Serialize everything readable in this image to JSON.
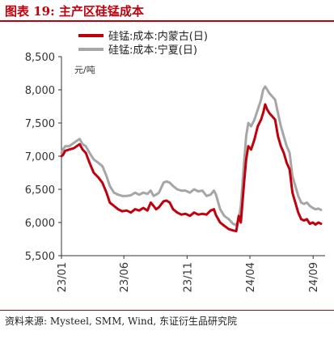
{
  "figure": {
    "title": "图表 19:  主产区硅锰成本",
    "source": "资料来源: Mysteel, SMM, Wind, 东证衍生品研究院",
    "colors": {
      "brand": "#c0000c"
    }
  },
  "chart_data": {
    "type": "line",
    "unit_label": "元/吨",
    "ylim": [
      5500,
      8500
    ],
    "yticks": [
      5500,
      6000,
      6500,
      7000,
      7500,
      8000,
      8500
    ],
    "ytick_labels": [
      "5,500",
      "6,000",
      "6,500",
      "7,000",
      "7,500",
      "8,000",
      "8,500"
    ],
    "xlim": [
      "2023-01-01",
      "2024-09-30"
    ],
    "xticks": [
      "2023-01-01",
      "2023-06-01",
      "2023-11-01",
      "2024-04-01",
      "2024-09-01"
    ],
    "xtick_labels": [
      "23/01",
      "23/06",
      "23/11",
      "24/04",
      "24/09"
    ],
    "legend_position": "top",
    "grid": false,
    "series": [
      {
        "name": "硅锰:成本:内蒙古(日)",
        "color": "#c0000c",
        "points": [
          [
            "2023-01-01",
            7000
          ],
          [
            "2023-01-05",
            7020
          ],
          [
            "2023-01-10",
            7080
          ],
          [
            "2023-01-20",
            7100
          ],
          [
            "2023-01-31",
            7120
          ],
          [
            "2023-02-07",
            7150
          ],
          [
            "2023-02-14",
            7180
          ],
          [
            "2023-02-21",
            7100
          ],
          [
            "2023-03-01",
            7050
          ],
          [
            "2023-03-10",
            6900
          ],
          [
            "2023-03-20",
            6750
          ],
          [
            "2023-03-31",
            6680
          ],
          [
            "2023-04-10",
            6600
          ],
          [
            "2023-04-20",
            6450
          ],
          [
            "2023-04-28",
            6300
          ],
          [
            "2023-05-08",
            6250
          ],
          [
            "2023-05-18",
            6200
          ],
          [
            "2023-05-28",
            6170
          ],
          [
            "2023-06-08",
            6180
          ],
          [
            "2023-06-18",
            6150
          ],
          [
            "2023-06-28",
            6200
          ],
          [
            "2023-07-08",
            6180
          ],
          [
            "2023-07-18",
            6220
          ],
          [
            "2023-07-28",
            6180
          ],
          [
            "2023-08-05",
            6300
          ],
          [
            "2023-08-12",
            6250
          ],
          [
            "2023-08-18",
            6200
          ],
          [
            "2023-08-25",
            6230
          ],
          [
            "2023-09-05",
            6320
          ],
          [
            "2023-09-12",
            6330
          ],
          [
            "2023-09-20",
            6300
          ],
          [
            "2023-09-28",
            6200
          ],
          [
            "2023-10-08",
            6150
          ],
          [
            "2023-10-18",
            6120
          ],
          [
            "2023-10-28",
            6130
          ],
          [
            "2023-11-08",
            6100
          ],
          [
            "2023-11-18",
            6150
          ],
          [
            "2023-11-28",
            6120
          ],
          [
            "2023-12-08",
            6130
          ],
          [
            "2023-12-18",
            6120
          ],
          [
            "2023-12-28",
            6180
          ],
          [
            "2024-01-05",
            6200
          ],
          [
            "2024-01-10",
            6110
          ],
          [
            "2024-01-20",
            6000
          ],
          [
            "2024-01-30",
            5950
          ],
          [
            "2024-02-10",
            5900
          ],
          [
            "2024-02-20",
            5880
          ],
          [
            "2024-02-28",
            5870
          ],
          [
            "2024-03-05",
            6100
          ],
          [
            "2024-03-10",
            6000
          ],
          [
            "2024-03-18",
            6600
          ],
          [
            "2024-03-23",
            6950
          ],
          [
            "2024-03-28",
            7150
          ],
          [
            "2024-04-04",
            7100
          ],
          [
            "2024-04-12",
            7250
          ],
          [
            "2024-04-20",
            7450
          ],
          [
            "2024-04-28",
            7550
          ],
          [
            "2024-05-03",
            7650
          ],
          [
            "2024-05-08",
            7780
          ],
          [
            "2024-05-13",
            7700
          ],
          [
            "2024-05-18",
            7650
          ],
          [
            "2024-05-25",
            7600
          ],
          [
            "2024-06-01",
            7550
          ],
          [
            "2024-06-08",
            7300
          ],
          [
            "2024-06-15",
            7150
          ],
          [
            "2024-06-22",
            7050
          ],
          [
            "2024-06-29",
            6900
          ],
          [
            "2024-07-06",
            6800
          ],
          [
            "2024-07-13",
            6450
          ],
          [
            "2024-07-20",
            6300
          ],
          [
            "2024-07-27",
            6150
          ],
          [
            "2024-08-03",
            6050
          ],
          [
            "2024-08-10",
            6030
          ],
          [
            "2024-08-17",
            6050
          ],
          [
            "2024-08-24",
            5980
          ],
          [
            "2024-08-31",
            6000
          ],
          [
            "2024-09-07",
            5970
          ],
          [
            "2024-09-14",
            6000
          ],
          [
            "2024-09-20",
            5980
          ]
        ]
      },
      {
        "name": "硅锰:成本:宁夏(日)",
        "color": "#a6a6a6",
        "points": [
          [
            "2023-01-01",
            7050
          ],
          [
            "2023-01-05",
            7100
          ],
          [
            "2023-01-10",
            7150
          ],
          [
            "2023-01-20",
            7150
          ],
          [
            "2023-01-31",
            7200
          ],
          [
            "2023-02-07",
            7230
          ],
          [
            "2023-02-14",
            7260
          ],
          [
            "2023-02-21",
            7180
          ],
          [
            "2023-03-01",
            7150
          ],
          [
            "2023-03-10",
            7050
          ],
          [
            "2023-03-20",
            6950
          ],
          [
            "2023-03-31",
            6900
          ],
          [
            "2023-04-10",
            6850
          ],
          [
            "2023-04-20",
            6700
          ],
          [
            "2023-04-28",
            6550
          ],
          [
            "2023-05-08",
            6450
          ],
          [
            "2023-05-18",
            6420
          ],
          [
            "2023-05-28",
            6400
          ],
          [
            "2023-06-08",
            6400
          ],
          [
            "2023-06-18",
            6410
          ],
          [
            "2023-06-28",
            6450
          ],
          [
            "2023-07-08",
            6420
          ],
          [
            "2023-07-18",
            6450
          ],
          [
            "2023-07-28",
            6430
          ],
          [
            "2023-08-05",
            6480
          ],
          [
            "2023-08-12",
            6400
          ],
          [
            "2023-08-18",
            6420
          ],
          [
            "2023-08-25",
            6450
          ],
          [
            "2023-09-05",
            6600
          ],
          [
            "2023-09-12",
            6620
          ],
          [
            "2023-09-20",
            6600
          ],
          [
            "2023-09-28",
            6550
          ],
          [
            "2023-10-08",
            6500
          ],
          [
            "2023-10-18",
            6480
          ],
          [
            "2023-10-28",
            6480
          ],
          [
            "2023-11-08",
            6450
          ],
          [
            "2023-11-18",
            6500
          ],
          [
            "2023-11-28",
            6470
          ],
          [
            "2023-12-08",
            6480
          ],
          [
            "2023-12-18",
            6400
          ],
          [
            "2023-12-28",
            6420
          ],
          [
            "2024-01-05",
            6480
          ],
          [
            "2024-01-10",
            6420
          ],
          [
            "2024-01-20",
            6200
          ],
          [
            "2024-01-30",
            6100
          ],
          [
            "2024-02-10",
            6050
          ],
          [
            "2024-02-20",
            5980
          ],
          [
            "2024-02-28",
            5960
          ],
          [
            "2024-03-05",
            6050
          ],
          [
            "2024-03-10",
            6250
          ],
          [
            "2024-03-18",
            6900
          ],
          [
            "2024-03-23",
            7300
          ],
          [
            "2024-03-28",
            7500
          ],
          [
            "2024-04-04",
            7450
          ],
          [
            "2024-04-12",
            7550
          ],
          [
            "2024-04-20",
            7700
          ],
          [
            "2024-04-28",
            7850
          ],
          [
            "2024-05-03",
            8000
          ],
          [
            "2024-05-08",
            8050
          ],
          [
            "2024-05-13",
            8000
          ],
          [
            "2024-05-18",
            7950
          ],
          [
            "2024-05-25",
            7900
          ],
          [
            "2024-06-01",
            7850
          ],
          [
            "2024-06-08",
            7650
          ],
          [
            "2024-06-15",
            7450
          ],
          [
            "2024-06-22",
            7300
          ],
          [
            "2024-06-29",
            7150
          ],
          [
            "2024-07-06",
            7050
          ],
          [
            "2024-07-13",
            6700
          ],
          [
            "2024-07-20",
            6550
          ],
          [
            "2024-07-27",
            6400
          ],
          [
            "2024-08-03",
            6300
          ],
          [
            "2024-08-10",
            6280
          ],
          [
            "2024-08-17",
            6300
          ],
          [
            "2024-08-24",
            6250
          ],
          [
            "2024-08-31",
            6220
          ],
          [
            "2024-09-07",
            6200
          ],
          [
            "2024-09-14",
            6210
          ],
          [
            "2024-09-20",
            6190
          ]
        ]
      }
    ]
  }
}
